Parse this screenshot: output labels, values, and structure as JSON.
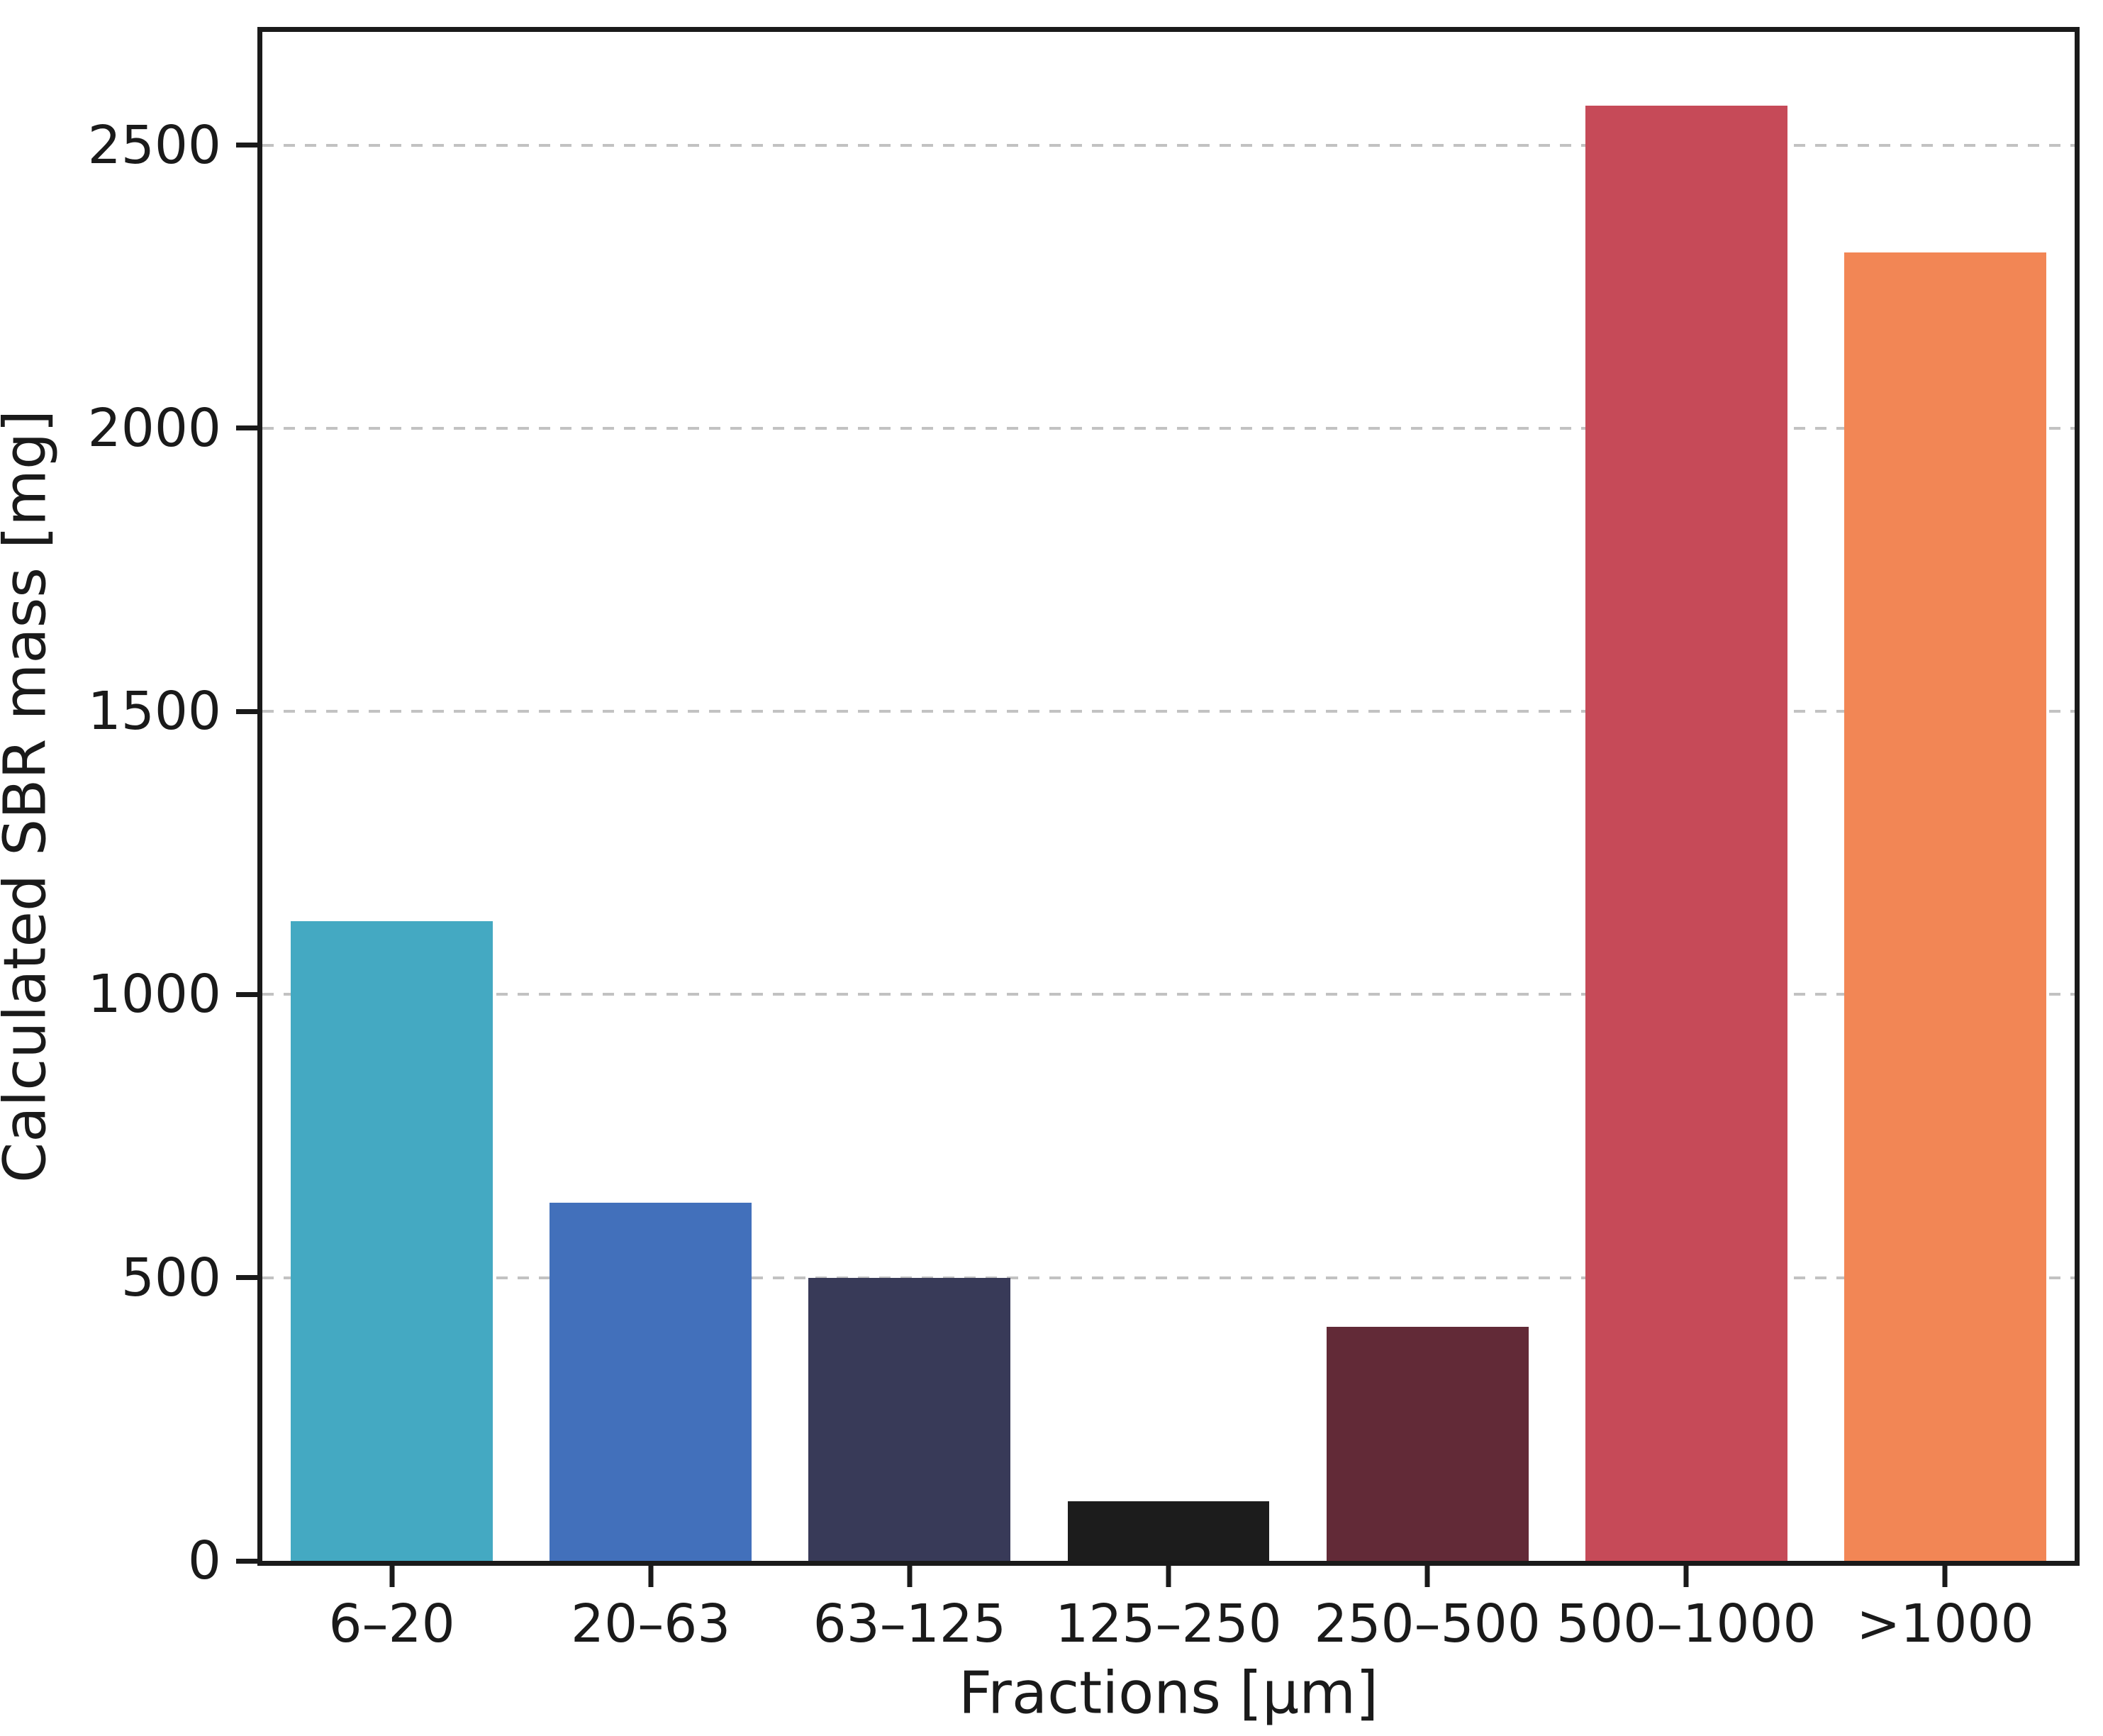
{
  "chart_data": {
    "type": "bar",
    "categories": [
      "6–20",
      "20–63",
      "63–125",
      "125–250",
      "250–500",
      "500–1000",
      ">1000"
    ],
    "values": [
      1130,
      633,
      500,
      105,
      413,
      2570,
      2310
    ],
    "bar_colors": [
      "#44a9c2",
      "#4270bb",
      "#383a58",
      "#1c1c1c",
      "#622a37",
      "#c64a58",
      "#f28655"
    ],
    "title": "",
    "xlabel": "Fractions [μm]",
    "ylabel": "Calculated SBR mass [mg]",
    "yticks": [
      0,
      500,
      1000,
      1500,
      2000,
      2500
    ],
    "ytick_labels": [
      "0",
      "500",
      "1000",
      "1500",
      "2000",
      "2500"
    ],
    "ylim": [
      0,
      2700
    ],
    "bar_width_fraction": 0.78,
    "grid": "horizontal dashed gridlines at y ticks",
    "gridline_color": "#c2c2c2",
    "spine_color": "#1a1a1a",
    "legend": "none",
    "background_color": "#ffffff"
  }
}
